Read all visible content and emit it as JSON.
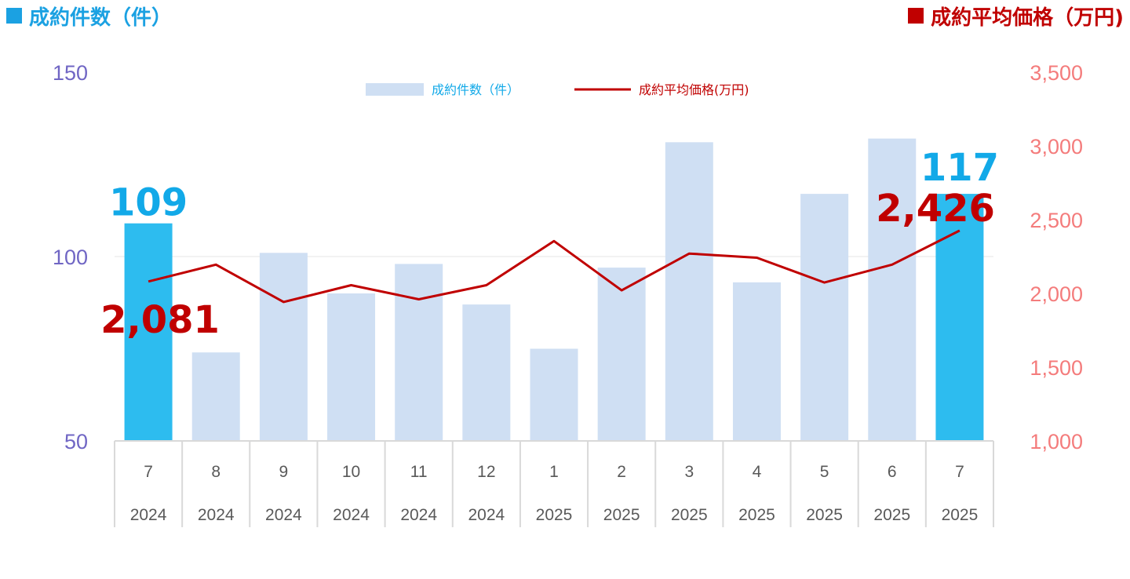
{
  "header": {
    "left_title": "成約件数（件）",
    "right_title": "成約平均価格（万円)"
  },
  "colors": {
    "bar": "#CFDFF3",
    "bar_highlight": "#2DBCEF",
    "line": "#C00000",
    "left_axis": "#7066C4",
    "right_axis": "#F47C7C",
    "count_label": "#12A9E8",
    "price_label": "#C00000"
  },
  "chart_data": {
    "type": "bar",
    "categories": [
      "7",
      "8",
      "9",
      "10",
      "11",
      "12",
      "1",
      "2",
      "3",
      "4",
      "5",
      "6",
      "7"
    ],
    "years": [
      "2024",
      "2024",
      "2024",
      "2024",
      "2024",
      "2024",
      "2025",
      "2025",
      "2025",
      "2025",
      "2025",
      "2025",
      "2025"
    ],
    "y_left": {
      "ticks": [
        "150",
        "100",
        "50"
      ],
      "ylim": [
        50,
        150
      ]
    },
    "y_right": {
      "ticks": [
        "3,500",
        "3,000",
        "2,500",
        "2,000",
        "1,500",
        "1,000"
      ],
      "ylim": [
        1000,
        3500
      ]
    },
    "legend": {
      "position": "top-center",
      "bar_label": "成約件数（件）",
      "line_label": "成約平均価格(万円)"
    },
    "series": [
      {
        "name": "成約件数（件）",
        "type": "bar",
        "axis": "left",
        "values": [
          109,
          74,
          101,
          90,
          98,
          87,
          75,
          97,
          131,
          93,
          117,
          132,
          117
        ]
      },
      {
        "name": "成約平均価格(万円)",
        "type": "line",
        "axis": "right",
        "values": [
          2081,
          2195,
          1942,
          2056,
          1960,
          2056,
          2355,
          2021,
          2270,
          2242,
          2074,
          2195,
          2426
        ]
      }
    ],
    "highlight_indices": [
      0,
      12
    ],
    "data_labels": [
      {
        "series": "count",
        "index": 0,
        "text": "109"
      },
      {
        "series": "count",
        "index": 12,
        "text": "117"
      },
      {
        "series": "price",
        "index": 0,
        "text": "2,081"
      },
      {
        "series": "price",
        "index": 12,
        "text": "2,426"
      }
    ]
  }
}
